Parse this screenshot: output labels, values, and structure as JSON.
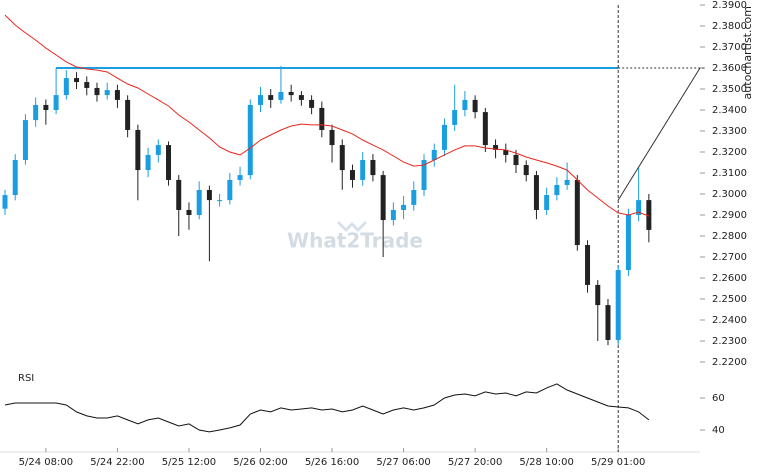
{
  "chart_data": [
    {
      "type": "candlestick",
      "categories": [
        null,
        null,
        null,
        null,
        "5/24 08:00",
        null,
        null,
        null,
        null,
        null,
        null,
        "5/24 22:00",
        null,
        null,
        null,
        null,
        null,
        null,
        "5/25 12:00",
        null,
        null,
        null,
        null,
        null,
        null,
        "5/26 02:00",
        null,
        null,
        null,
        null,
        null,
        null,
        "5/26 16:00",
        null,
        null,
        null,
        null,
        null,
        null,
        "5/27 06:00",
        null,
        null,
        null,
        null,
        null,
        null,
        "5/27 20:00",
        null,
        null,
        null,
        null,
        null,
        null,
        "5/28 10:00",
        null,
        null,
        null,
        null,
        null,
        null,
        "5/29 01:00",
        null,
        null,
        null
      ],
      "open": [
        2.293,
        2.2995,
        2.3162,
        2.3352,
        2.3424,
        2.34,
        2.3471,
        2.3552,
        2.3533,
        2.3505,
        2.3471,
        2.3495,
        2.3448,
        2.3305,
        2.3114,
        2.3186,
        2.3233,
        2.3067,
        2.2924,
        2.29,
        2.3019,
        2.2971,
        2.2971,
        2.3067,
        2.309,
        2.3424,
        2.3471,
        2.3448,
        2.3486,
        2.3471,
        2.3448,
        2.341,
        2.3305,
        2.3233,
        2.3114,
        2.3067,
        2.3162,
        2.309,
        2.2876,
        2.2924,
        2.2948,
        2.3019,
        2.3162,
        2.321,
        2.3329,
        2.34,
        2.3448,
        2.339,
        2.3233,
        2.321,
        2.3186,
        2.3138,
        2.309,
        2.2924,
        2.2995,
        2.3043,
        2.3067,
        2.2757,
        2.2567,
        2.2471,
        2.2305,
        2.2638,
        2.29,
        2.2971
      ],
      "high": [
        2.302,
        2.319,
        2.338,
        2.346,
        2.345,
        2.36,
        2.359,
        2.358,
        2.356,
        2.353,
        2.353,
        2.352,
        2.347,
        2.333,
        2.322,
        2.326,
        2.325,
        2.309,
        2.296,
        2.306,
        2.304,
        2.3,
        2.31,
        2.313,
        2.345,
        2.351,
        2.35,
        2.361,
        2.352,
        2.349,
        2.347,
        2.344,
        2.333,
        2.326,
        2.314,
        2.32,
        2.319,
        2.311,
        2.296,
        2.299,
        2.306,
        2.319,
        2.324,
        2.336,
        2.352,
        2.349,
        2.347,
        2.341,
        2.326,
        2.324,
        2.321,
        2.316,
        2.311,
        2.303,
        2.308,
        2.315,
        2.309,
        2.278,
        2.259,
        2.25,
        2.266,
        2.293,
        2.313,
        2.3
      ],
      "low": [
        2.29,
        2.297,
        2.314,
        2.332,
        2.333,
        2.338,
        2.345,
        2.35,
        2.347,
        2.344,
        2.345,
        2.341,
        2.327,
        2.297,
        2.308,
        2.315,
        2.304,
        2.28,
        2.283,
        2.288,
        2.268,
        2.294,
        2.295,
        2.304,
        2.307,
        2.339,
        2.341,
        2.343,
        2.344,
        2.342,
        2.338,
        2.327,
        2.315,
        2.302,
        2.303,
        2.304,
        2.306,
        2.27,
        2.285,
        2.288,
        2.292,
        2.299,
        2.313,
        2.318,
        2.33,
        2.337,
        2.336,
        2.32,
        2.317,
        2.315,
        2.31,
        2.306,
        2.288,
        2.29,
        2.297,
        2.302,
        2.273,
        2.253,
        2.23,
        2.228,
        2.228,
        2.261,
        2.287,
        2.277
      ],
      "close": [
        2.2995,
        2.3162,
        2.3352,
        2.3424,
        2.34,
        2.3471,
        2.3552,
        2.3533,
        2.3505,
        2.3471,
        2.3495,
        2.3448,
        2.3305,
        2.3114,
        2.3186,
        2.3233,
        2.3067,
        2.2924,
        2.29,
        2.3019,
        2.2971,
        2.2971,
        2.3067,
        2.309,
        2.3424,
        2.3471,
        2.3448,
        2.3486,
        2.3471,
        2.3448,
        2.341,
        2.3305,
        2.3233,
        2.3114,
        2.3067,
        2.3162,
        2.309,
        2.2876,
        2.2924,
        2.2948,
        2.3019,
        2.3162,
        2.321,
        2.3329,
        2.34,
        2.3448,
        2.339,
        2.3233,
        2.321,
        2.3186,
        2.3138,
        2.309,
        2.2924,
        2.2995,
        2.3043,
        2.3067,
        2.2757,
        2.2567,
        2.2471,
        2.2305,
        2.2638,
        2.29,
        2.2971,
        2.2829
      ],
      "up_color": "#1a9ee0",
      "down_color": "#222222",
      "moving_average": {
        "color": "#e8281e",
        "values": [
          2.3852,
          2.3805,
          2.3767,
          2.3733,
          2.3695,
          2.3662,
          2.3629,
          2.3605,
          2.3595,
          2.359,
          2.3581,
          2.3552,
          2.3524,
          2.3505,
          2.3476,
          2.3448,
          2.3419,
          2.3376,
          2.3343,
          2.3305,
          2.3267,
          2.3224,
          2.32,
          2.3186,
          2.3219,
          2.3257,
          2.3281,
          2.3305,
          2.3324,
          2.3333,
          2.3329,
          2.3329,
          2.3324,
          2.3305,
          2.3286,
          2.3257,
          2.3233,
          2.321,
          2.3181,
          2.3152,
          2.3133,
          2.3138,
          2.3162,
          2.3186,
          2.321,
          2.3229,
          2.3229,
          2.3219,
          2.3214,
          2.321,
          2.3195,
          2.3176,
          2.3162,
          2.3148,
          2.3133,
          2.3114,
          2.3067,
          2.3019,
          2.2981,
          2.2943,
          2.291,
          2.29,
          2.2914,
          2.2895
        ]
      },
      "level": {
        "value": 2.36,
        "color": "#1a9ee0"
      },
      "ylim": [
        2.22,
        2.39
      ],
      "yticks": [
        {
          "value": 2.22,
          "label": "2.2200"
        },
        {
          "value": 2.23,
          "label": "2.2300"
        },
        {
          "value": 2.24,
          "label": "2.2400"
        },
        {
          "value": 2.25,
          "label": "2.2500"
        },
        {
          "value": 2.26,
          "label": "2.2600"
        },
        {
          "value": 2.27,
          "label": "2.2700"
        },
        {
          "value": 2.28,
          "label": "2.2800"
        },
        {
          "value": 2.29,
          "label": "2.2900"
        },
        {
          "value": 2.3,
          "label": "2.3000"
        },
        {
          "value": 2.31,
          "label": "2.3100"
        },
        {
          "value": 2.32,
          "label": "2.3200"
        },
        {
          "value": 2.33,
          "label": "2.3300"
        },
        {
          "value": 2.34,
          "label": "2.3400"
        },
        {
          "value": 2.35,
          "label": "2.3500"
        },
        {
          "value": 2.36,
          "label": "2.3600"
        },
        {
          "value": 2.37,
          "label": "2.3700"
        },
        {
          "value": 2.38,
          "label": "2.3800"
        },
        {
          "value": 2.39,
          "label": "2.3900"
        }
      ],
      "watermark": "What2Trade",
      "source": "autochartist.com"
    },
    {
      "type": "line",
      "title": "RSI",
      "color": "#111111",
      "values": [
        55.6,
        56.9,
        56.9,
        56.9,
        56.9,
        56.9,
        55.6,
        51.3,
        48.8,
        47.5,
        47.5,
        48.8,
        46.3,
        43.8,
        46.3,
        47.5,
        45.0,
        42.5,
        43.8,
        40.0,
        38.8,
        40.0,
        41.3,
        43.1,
        50.0,
        52.5,
        51.3,
        53.8,
        52.5,
        53.1,
        53.8,
        52.5,
        53.1,
        51.3,
        52.5,
        55.0,
        52.5,
        50.0,
        52.5,
        53.8,
        52.5,
        53.8,
        55.6,
        60.0,
        61.9,
        62.5,
        61.3,
        63.8,
        62.5,
        63.1,
        61.3,
        63.8,
        63.1,
        66.3,
        68.8,
        65.0,
        62.5,
        60.0,
        57.5,
        55.0,
        54.4,
        53.8,
        51.3,
        46.3
      ],
      "ylim": [
        30,
        80
      ],
      "yticks": [
        40,
        60
      ]
    }
  ]
}
